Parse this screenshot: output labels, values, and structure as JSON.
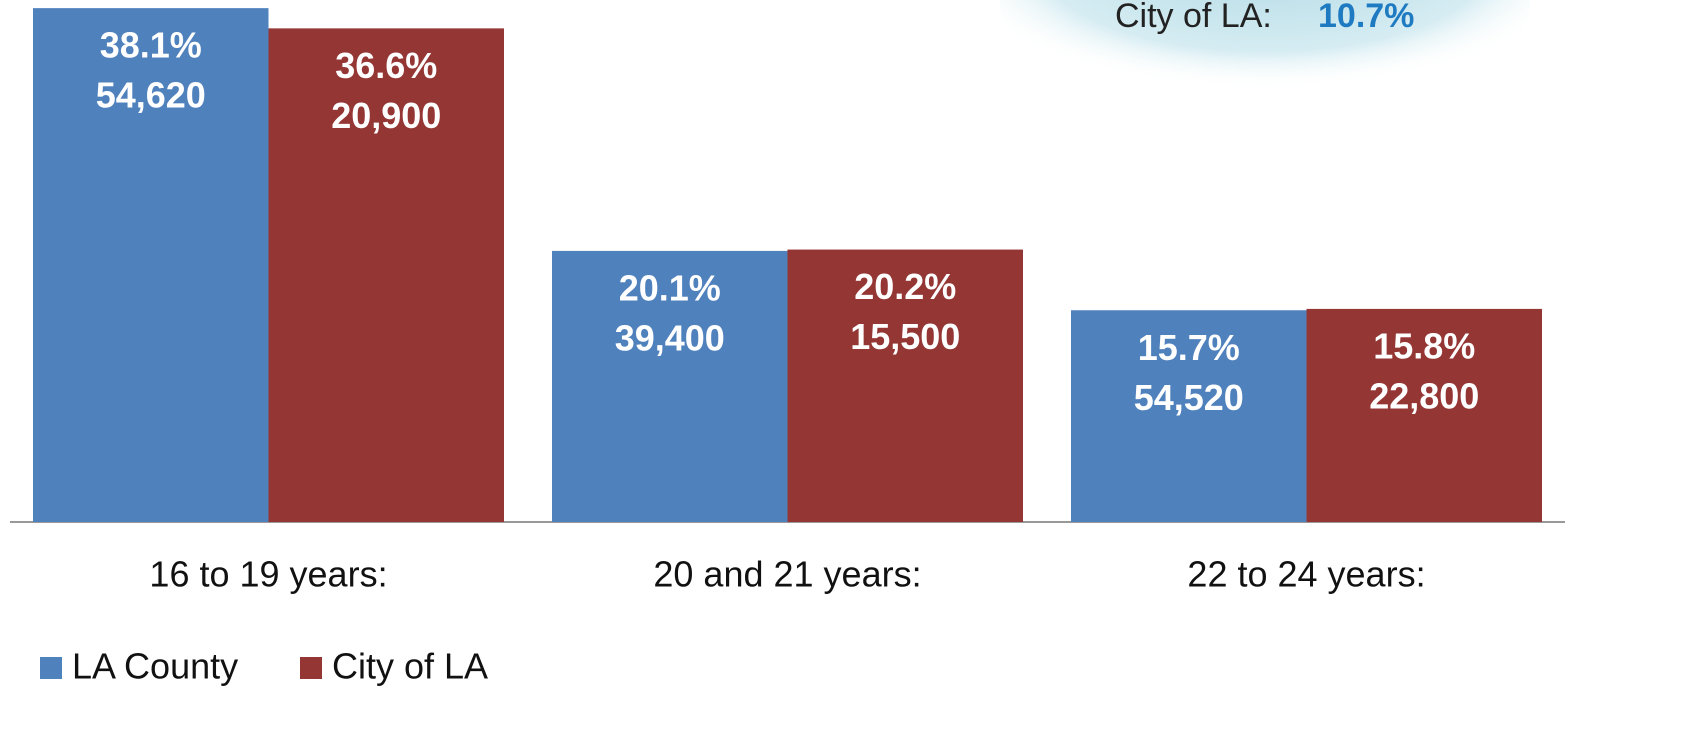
{
  "chart_data": {
    "type": "bar",
    "categories": [
      "16 to 19 years:",
      "20 and 21 years:",
      "22 to 24 years:"
    ],
    "series": [
      {
        "name": "LA County",
        "color": "#4f81bd",
        "values": [
          38.1,
          20.1,
          15.7
        ],
        "value_labels": [
          "38.1%",
          "20.1%",
          "15.7%"
        ],
        "count_labels": [
          "54,620",
          "39,400",
          "54,520"
        ]
      },
      {
        "name": "City of LA",
        "color": "#943634",
        "values": [
          36.6,
          20.2,
          15.8
        ],
        "value_labels": [
          "36.6%",
          "20.2%",
          "15.8%"
        ],
        "count_labels": [
          "20,900",
          "15,500",
          "22,800"
        ]
      }
    ],
    "ylim": [
      0,
      39
    ],
    "annotation": {
      "label": "City of LA:",
      "value": "10.7%"
    },
    "legend": "bottom-left"
  }
}
